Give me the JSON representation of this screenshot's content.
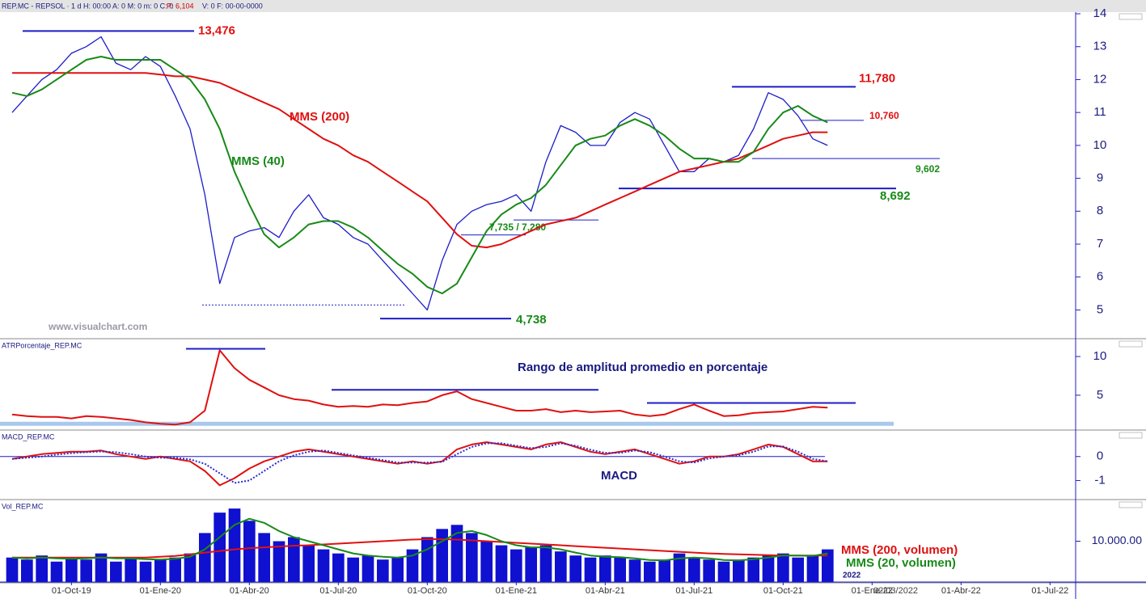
{
  "header": {
    "title": "REP.MC - REPSOL · 1 d H: 00:00 A: 0 M: 0 m: 0 C: 0",
    "price": "P: 6,104",
    "rest": "V: 0 F: 00-00-0000"
  },
  "chart_data": [
    {
      "type": "line",
      "watermark": "www.visualchart.com",
      "ylim": [
        4.15,
        14.05
      ],
      "yticks": [
        5,
        6,
        7,
        8,
        9,
        10,
        11,
        12,
        13,
        14
      ],
      "series": [
        {
          "color": "#1c1cc8",
          "values": [
            11.0,
            11.5,
            12.0,
            12.3,
            12.8,
            13.0,
            13.3,
            12.5,
            12.3,
            12.7,
            12.4,
            11.5,
            10.5,
            8.5,
            5.8,
            7.2,
            7.4,
            7.5,
            7.2,
            8.0,
            8.5,
            7.8,
            7.6,
            7.2,
            7.0,
            6.5,
            6.0,
            5.5,
            5.0,
            6.5,
            7.6,
            8.0,
            8.2,
            8.3,
            8.5,
            8.0,
            9.5,
            10.6,
            10.4,
            10.0,
            10.0,
            10.7,
            11.0,
            10.8,
            10.0,
            9.2,
            9.2,
            9.6,
            9.5,
            9.7,
            10.5,
            11.6,
            11.4,
            10.9,
            10.2,
            10.0,
            null,
            null,
            null,
            null,
            null,
            null,
            null,
            null,
            null,
            null,
            null,
            null,
            null,
            null,
            null,
            null
          ]
        },
        {
          "name": "MMS (200)",
          "color": "#e01010",
          "values": [
            12.2,
            12.2,
            12.2,
            12.2,
            12.2,
            12.2,
            12.2,
            12.2,
            12.2,
            12.2,
            12.15,
            12.1,
            12.1,
            12.0,
            11.9,
            11.7,
            11.5,
            11.3,
            11.1,
            10.8,
            10.5,
            10.2,
            10.0,
            9.7,
            9.5,
            9.2,
            8.9,
            8.6,
            8.3,
            7.8,
            7.3,
            6.95,
            6.9,
            7.0,
            7.2,
            7.4,
            7.6,
            7.7,
            7.8,
            8.0,
            8.2,
            8.4,
            8.6,
            8.8,
            9.0,
            9.2,
            9.3,
            9.4,
            9.5,
            9.6,
            9.8,
            10.0,
            10.2,
            10.3,
            10.4,
            10.4,
            null,
            null,
            null,
            null,
            null,
            null,
            null,
            null,
            null,
            null,
            null,
            null,
            null,
            null,
            null,
            null
          ]
        },
        {
          "name": "MMS (40)",
          "color": "#188a18",
          "values": [
            11.6,
            11.5,
            11.7,
            12.0,
            12.3,
            12.6,
            12.7,
            12.6,
            12.6,
            12.6,
            12.6,
            12.3,
            12.0,
            11.4,
            10.5,
            9.2,
            8.2,
            7.3,
            6.9,
            7.2,
            7.6,
            7.7,
            7.7,
            7.5,
            7.2,
            6.8,
            6.4,
            6.1,
            5.7,
            5.5,
            5.8,
            6.6,
            7.4,
            7.9,
            8.2,
            8.4,
            8.8,
            9.4,
            10.0,
            10.2,
            10.3,
            10.6,
            10.8,
            10.6,
            10.3,
            9.9,
            9.6,
            9.6,
            9.5,
            9.5,
            9.8,
            10.5,
            11.0,
            11.2,
            10.9,
            10.7,
            null,
            null,
            null,
            null,
            null,
            null,
            null,
            null,
            null,
            null,
            null,
            null,
            null,
            null,
            null,
            null
          ]
        }
      ],
      "levels": {
        "values": [
          13.476,
          11.78,
          10.76,
          9.602,
          8.692,
          7.735,
          7.28,
          4.738,
          5.15
        ],
        "value_labels": [
          "13,476",
          "11,780",
          "10,760",
          "9,602",
          "8,692",
          null,
          null,
          "4,738",
          null
        ]
      },
      "annotations": [
        "7,735 / 7,280"
      ]
    },
    {
      "type": "line",
      "title": "ATRPorcentaje_REP.MC",
      "ylim": [
        0.6,
        12.2
      ],
      "yticks": [
        5,
        10
      ],
      "series": [
        {
          "color": "#e01010",
          "values": [
            2.5,
            2.3,
            2.2,
            2.2,
            2.0,
            2.3,
            2.2,
            2.0,
            1.8,
            1.5,
            1.3,
            1.2,
            1.5,
            3.0,
            10.8,
            8.5,
            7.0,
            6.0,
            5.0,
            4.5,
            4.3,
            3.8,
            3.5,
            3.6,
            3.5,
            3.8,
            3.7,
            4.0,
            4.2,
            5.0,
            5.5,
            4.5,
            4.0,
            3.5,
            3.0,
            3.0,
            3.2,
            2.8,
            3.0,
            2.8,
            2.9,
            3.0,
            2.5,
            2.3,
            2.5,
            3.2,
            3.8,
            3.0,
            2.3,
            2.4,
            2.7,
            2.8,
            2.9,
            3.2,
            3.5,
            3.4,
            null,
            null,
            null,
            null,
            null,
            null,
            null,
            null,
            null,
            null,
            null,
            null,
            null,
            null,
            null,
            null
          ]
        }
      ],
      "levels": {
        "values": [
          11,
          5.7,
          4.0,
          1.3
        ]
      },
      "annotations": [
        "Rango de amplitud promedio en porcentaje"
      ]
    },
    {
      "type": "line",
      "title": "MACD_REP.MC",
      "ylim": [
        -1.76,
        1.07
      ],
      "yticks": [
        -1,
        0
      ],
      "series": [
        {
          "color": "#e01010",
          "values": [
            -0.1,
            0.0,
            0.1,
            0.15,
            0.2,
            0.2,
            0.25,
            0.1,
            0.0,
            -0.1,
            0.0,
            -0.1,
            -0.2,
            -0.6,
            -1.2,
            -0.9,
            -0.5,
            -0.2,
            0.0,
            0.2,
            0.3,
            0.2,
            0.1,
            0.0,
            -0.1,
            -0.2,
            -0.3,
            -0.2,
            -0.3,
            -0.2,
            0.3,
            0.5,
            0.6,
            0.5,
            0.4,
            0.3,
            0.5,
            0.6,
            0.4,
            0.2,
            0.1,
            0.2,
            0.3,
            0.1,
            -0.1,
            -0.3,
            -0.2,
            0.0,
            0.0,
            0.1,
            0.3,
            0.5,
            0.4,
            0.1,
            -0.2,
            -0.2,
            null,
            null,
            null,
            null,
            null,
            null,
            null,
            null,
            null,
            null,
            null,
            null,
            null,
            null,
            null,
            null
          ]
        },
        {
          "color": "#2a2ad0",
          "style": "dotted",
          "values": [
            -0.1,
            -0.05,
            0.0,
            0.08,
            0.14,
            0.18,
            0.21,
            0.18,
            0.1,
            0.0,
            -0.05,
            -0.05,
            -0.12,
            -0.3,
            -0.7,
            -1.1,
            -1.0,
            -0.6,
            -0.2,
            0.05,
            0.2,
            0.25,
            0.15,
            0.05,
            -0.05,
            -0.15,
            -0.25,
            -0.25,
            -0.25,
            -0.22,
            0.1,
            0.4,
            0.55,
            0.55,
            0.45,
            0.35,
            0.4,
            0.55,
            0.45,
            0.28,
            0.15,
            0.15,
            0.25,
            0.18,
            0.0,
            -0.2,
            -0.25,
            -0.08,
            0.0,
            0.05,
            0.2,
            0.42,
            0.42,
            0.2,
            -0.1,
            -0.2,
            null,
            null,
            null,
            null,
            null,
            null,
            null,
            null,
            null,
            null,
            null,
            null,
            null,
            null,
            null,
            null
          ]
        }
      ],
      "levels": {
        "values": [
          0
        ]
      },
      "annotations": [
        "MACD"
      ]
    },
    {
      "type": "bar",
      "title": "Vol_REP.MC",
      "ylim": [
        0,
        20000
      ],
      "yticks": [
        {
          "value": 10000,
          "label": "10.000.00"
        }
      ],
      "categories": [
        null,
        null,
        null,
        null,
        "01-Oct-19",
        null,
        null,
        null,
        null,
        null,
        "01-Ene-20",
        null,
        null,
        null,
        null,
        null,
        "01-Abr-20",
        null,
        null,
        null,
        null,
        null,
        "01-Jul-20",
        null,
        null,
        null,
        null,
        null,
        "01-Oct-20",
        null,
        null,
        null,
        null,
        null,
        "01-Ene-21",
        null,
        null,
        null,
        null,
        null,
        "01-Abr-21",
        null,
        null,
        null,
        null,
        null,
        "01-Jul-21",
        null,
        null,
        null,
        null,
        null,
        "01-Oct-21",
        null,
        null,
        null,
        null,
        null,
        "01-Ene-22",
        null,
        null,
        null,
        null,
        null,
        "01-Abr-22",
        null,
        null,
        null,
        null,
        null,
        "01-Jul-22",
        null
      ],
      "series": [
        {
          "type": "bar",
          "color": "#1010d0",
          "values": [
            6000,
            5500,
            6500,
            5000,
            6000,
            5500,
            7000,
            5000,
            6000,
            5000,
            5500,
            6000,
            7000,
            12000,
            17000,
            18000,
            15000,
            12000,
            10000,
            11000,
            9000,
            8000,
            7000,
            6000,
            6500,
            5500,
            6000,
            8000,
            11000,
            13000,
            14000,
            12000,
            10000,
            9000,
            8000,
            8500,
            9000,
            7500,
            6500,
            6000,
            6500,
            6000,
            5500,
            5000,
            5500,
            7000,
            6000,
            5500,
            5000,
            5500,
            6000,
            6500,
            7000,
            6000,
            6500,
            8000,
            null,
            null,
            null,
            null,
            null,
            null,
            null,
            null,
            null,
            null,
            null,
            null,
            null,
            null,
            null,
            null
          ]
        },
        {
          "type": "line",
          "name": "MMS (200, volumen)",
          "color": "#e01010",
          "values": [
            6000,
            6000,
            6000,
            6000,
            6000,
            6000,
            6000,
            6000,
            6000,
            6000,
            6200,
            6400,
            6800,
            7200,
            7600,
            8000,
            8300,
            8500,
            8700,
            8900,
            9000,
            9200,
            9400,
            9600,
            9800,
            10000,
            10200,
            10400,
            10500,
            10500,
            10400,
            10200,
            10000,
            9800,
            9600,
            9400,
            9200,
            9000,
            8800,
            8600,
            8400,
            8200,
            8000,
            7800,
            7600,
            7400,
            7200,
            7000,
            6900,
            6800,
            6700,
            6600,
            6500,
            6500,
            6500,
            6500,
            null,
            null,
            null,
            null,
            null,
            null,
            null,
            null,
            null,
            null,
            null,
            null,
            null,
            null,
            null,
            null
          ]
        },
        {
          "type": "line",
          "name": "MMS (20, volumen)",
          "color": "#188a18",
          "values": [
            6000,
            5800,
            6000,
            5800,
            5700,
            5800,
            6000,
            5800,
            5800,
            5600,
            5500,
            5700,
            6200,
            8000,
            11000,
            14000,
            15500,
            14500,
            12500,
            11000,
            10000,
            9000,
            8000,
            7000,
            6500,
            6200,
            6000,
            6500,
            8000,
            10000,
            12000,
            12500,
            11500,
            10000,
            9000,
            8500,
            8500,
            8000,
            7200,
            6500,
            6200,
            6100,
            5800,
            5400,
            5300,
            5800,
            6000,
            5800,
            5400,
            5300,
            5600,
            6000,
            6500,
            6500,
            6400,
            7000,
            null,
            null,
            null,
            null,
            null,
            null,
            null,
            null,
            null,
            null,
            null,
            null,
            null,
            null,
            null,
            null
          ]
        }
      ],
      "x_annotations": [
        "2022",
        "02/03/2022"
      ]
    }
  ]
}
